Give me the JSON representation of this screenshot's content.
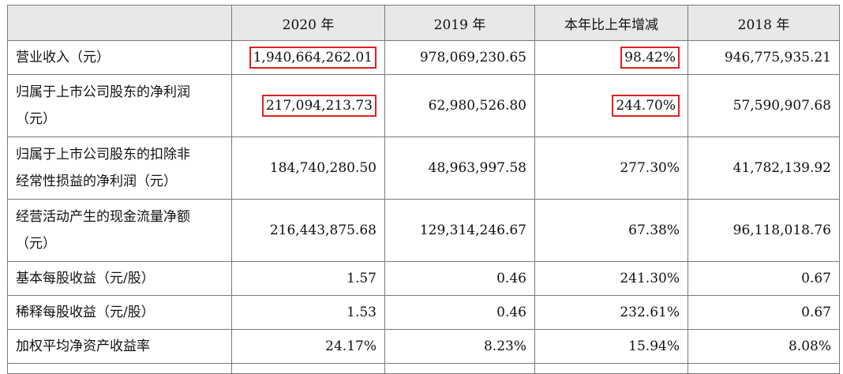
{
  "header": [
    "2020 年",
    "2019 年",
    "本年比上年增减",
    "2018 年"
  ],
  "rows": [
    {
      "label": "营业收入（元）",
      "v2020": "1,940,664,262.01",
      "v2019": "978,069,230.65",
      "change": "98.42%",
      "v2018": "946,775,935.21"
    },
    {
      "label_line1": "归属于上市公司股东的净利润",
      "label_line2": "（元）",
      "v2020": "217,094,213.73",
      "v2019": "62,980,526.80",
      "change": "244.70%",
      "v2018": "57,590,907.68"
    },
    {
      "label_line1": "归属于上市公司股东的扣除非",
      "label_line2": "经常性损益的净利润（元）",
      "v2020": "184,740,280.50",
      "v2019": "48,963,997.58",
      "change": "277.30%",
      "v2018": "41,782,139.92"
    },
    {
      "label_line1": "经营活动产生的现金流量净额",
      "label_line2": "（元）",
      "v2020": "216,443,875.68",
      "v2019": "129,314,246.67",
      "change": "67.38%",
      "v2018": "96,118,018.76"
    },
    {
      "label": "基本每股收益（元/股）",
      "v2020": "1.57",
      "v2019": "0.46",
      "change": "241.30%",
      "v2018": "0.67"
    },
    {
      "label": "稀释每股收益（元/股）",
      "v2020": "1.53",
      "v2019": "0.46",
      "change": "232.61%",
      "v2018": "0.67"
    },
    {
      "label": "加权平均净资产收益率",
      "v2020": "24.17%",
      "v2019": "8.23%",
      "change": "15.94%",
      "v2018": "8.08%"
    }
  ],
  "highlight_color": "#e02020"
}
